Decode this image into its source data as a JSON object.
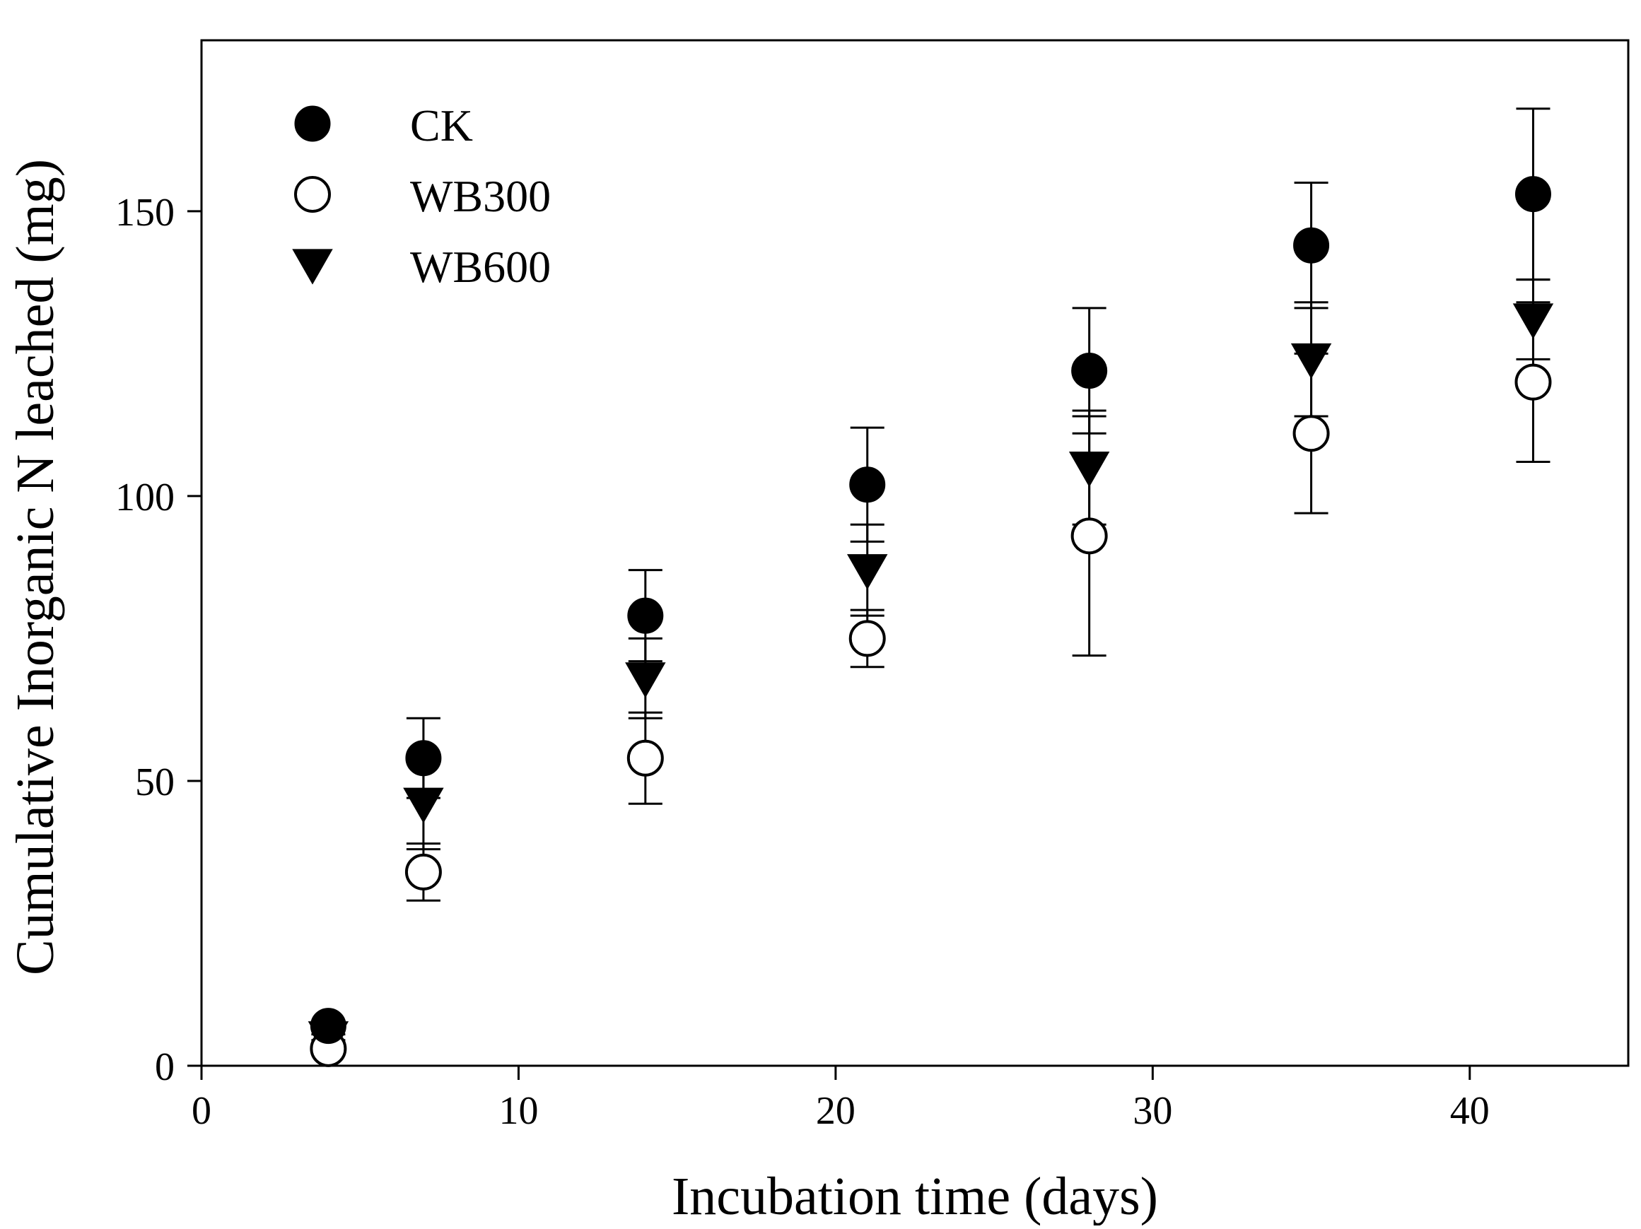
{
  "chart_data": {
    "type": "scatter",
    "xlabel": "Incubation time (days)",
    "ylabel": "Cumulative Inorganic N leached (mg)",
    "xlim": [
      0,
      45
    ],
    "ylim": [
      0,
      180
    ],
    "xticks": [
      0,
      10,
      20,
      30,
      40
    ],
    "yticks": [
      0,
      50,
      100,
      150
    ],
    "grid": false,
    "legend_position": "top-left",
    "x": [
      4,
      7,
      14,
      21,
      28,
      35,
      42
    ],
    "series": [
      {
        "name": "CK",
        "marker": "filled-circle",
        "color": "#000000",
        "values": [
          7,
          54,
          79,
          102,
          122,
          144,
          153
        ],
        "error": [
          0.5,
          7,
          8,
          10,
          11,
          11,
          15
        ]
      },
      {
        "name": "WB300",
        "marker": "open-circle",
        "color": "#000000",
        "values": [
          3,
          34,
          54,
          75,
          93,
          111,
          120
        ],
        "error": [
          0.5,
          5,
          8,
          5,
          21,
          14,
          14
        ]
      },
      {
        "name": "WB600",
        "marker": "filled-triangle-down",
        "color": "#000000",
        "values": [
          5,
          46,
          68,
          87,
          105,
          124,
          131
        ],
        "error": [
          0.5,
          8,
          7,
          8,
          10,
          10,
          7
        ]
      }
    ]
  }
}
